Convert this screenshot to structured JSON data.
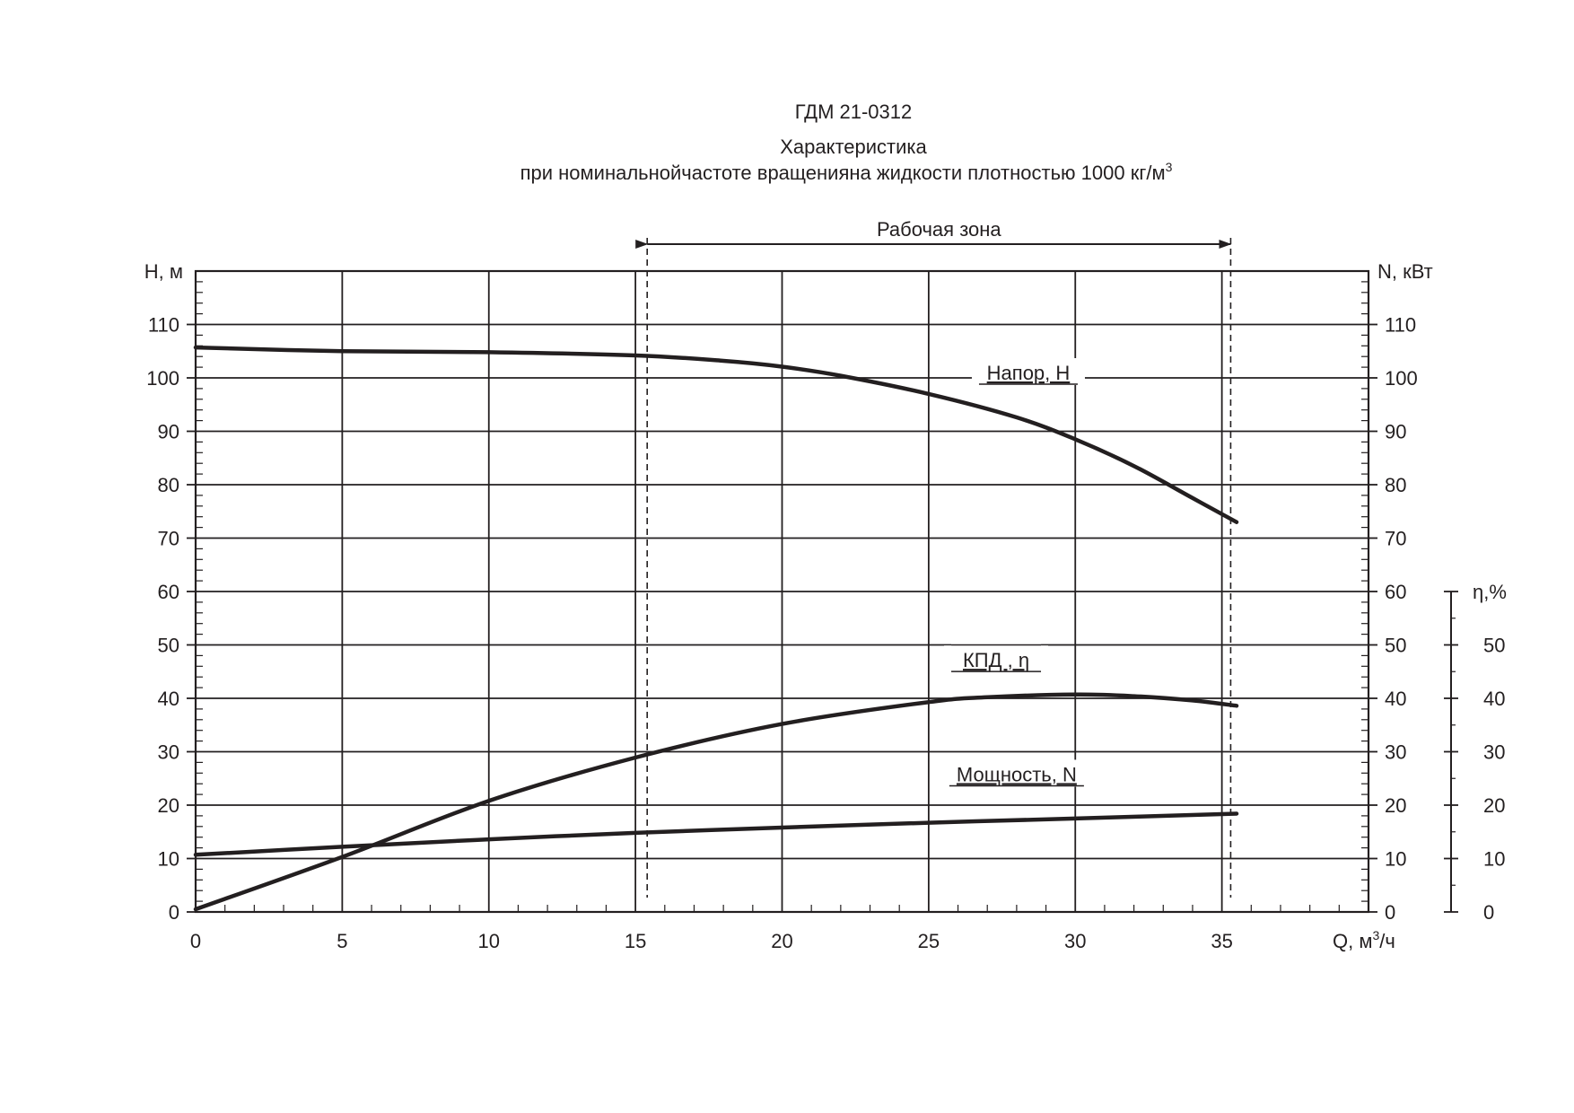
{
  "chart_data": {
    "type": "line",
    "title": "ГДМ 21-0312",
    "subtitle_line1": "Характеристика",
    "subtitle_line2": "при номинальнойчастоте вращенияна жидкости плотностью 1000 кг/м",
    "subtitle_sup": "3",
    "work_zone": {
      "label": "Рабочая зона",
      "x_start": 15.4,
      "x_end": 35.3
    },
    "x_axis": {
      "label": "Q, м",
      "label_sup": "3",
      "label_suffix": "/ч",
      "range": [
        0,
        40
      ],
      "ticks": [
        0,
        5,
        10,
        15,
        20,
        25,
        30,
        35
      ]
    },
    "y_left": {
      "label": "H, м",
      "range": [
        0,
        120
      ],
      "ticks": [
        0,
        10,
        20,
        30,
        40,
        50,
        60,
        70,
        80,
        90,
        100,
        110
      ]
    },
    "y_right": {
      "label": "N, кВт",
      "range": [
        0,
        120
      ],
      "ticks": [
        0,
        10,
        20,
        30,
        40,
        50,
        60,
        70,
        80,
        90,
        100,
        110
      ]
    },
    "y_eta": {
      "label": "η,%",
      "range": [
        0,
        60
      ],
      "ticks": [
        0,
        10,
        20,
        30,
        40,
        50
      ]
    },
    "grid": true,
    "series": [
      {
        "name": "Напор, H",
        "axis": "left",
        "x": [
          0,
          5,
          10,
          15,
          18,
          20,
          22,
          25,
          28,
          30,
          32,
          34,
          35.5
        ],
        "y": [
          105.7,
          105.0,
          104.8,
          104.2,
          103.2,
          102.1,
          100.4,
          97.0,
          92.6,
          88.5,
          83.5,
          77.5,
          73.0
        ]
      },
      {
        "name": "КПД , η",
        "axis": "left",
        "x": [
          0,
          5,
          10,
          15,
          20,
          25,
          27,
          30,
          32,
          34,
          35.5
        ],
        "y": [
          0.5,
          10.3,
          20.8,
          28.9,
          35.2,
          39.3,
          40.2,
          40.7,
          40.4,
          39.6,
          38.6
        ]
      },
      {
        "name": "Мощность, N",
        "axis": "right",
        "x": [
          0,
          5,
          10,
          15,
          20,
          25,
          30,
          35.5
        ],
        "y": [
          10.7,
          12.2,
          13.6,
          14.8,
          15.8,
          16.7,
          17.5,
          18.4
        ]
      }
    ]
  }
}
